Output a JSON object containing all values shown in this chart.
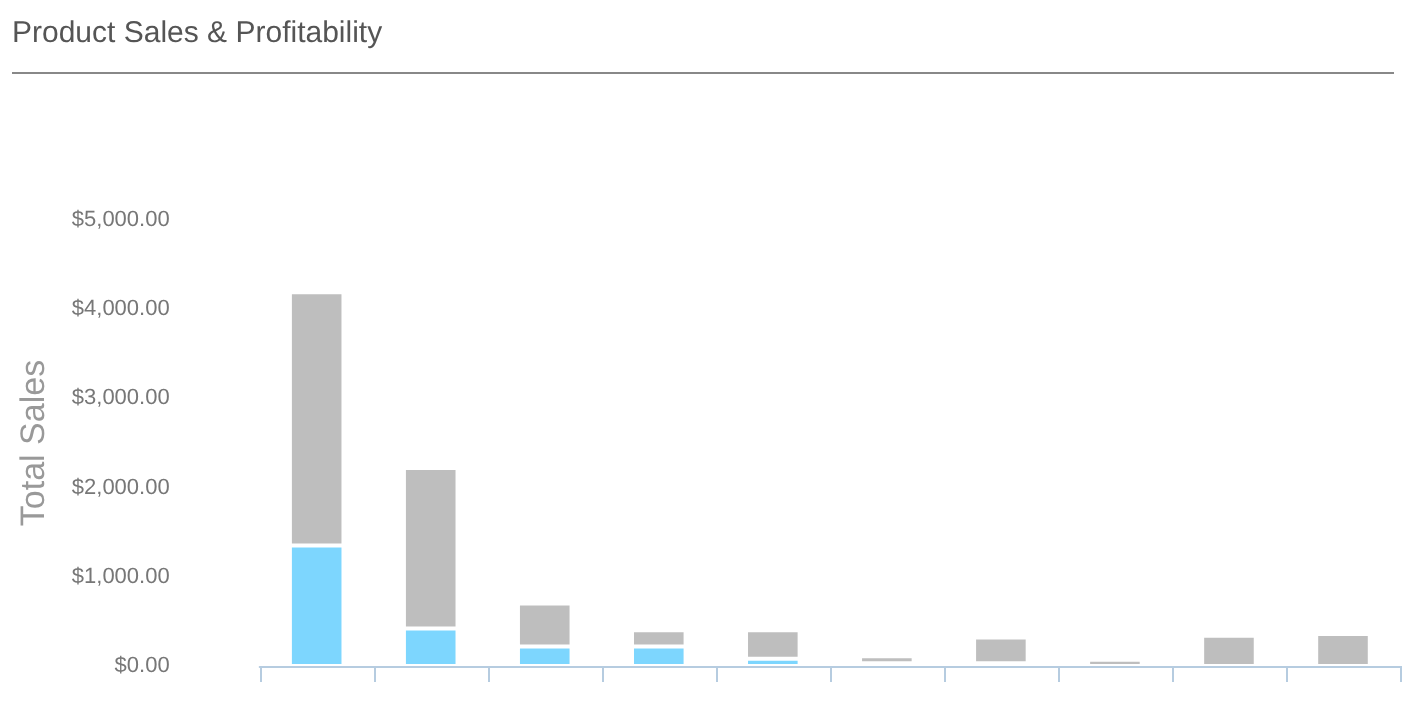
{
  "chart_data": {
    "type": "bar",
    "title": "Product Sales & Profitability",
    "ylabel": "Total Sales",
    "stacked": true,
    "categories": [
      null,
      null,
      null,
      null,
      null,
      null,
      null,
      null,
      null,
      null
    ],
    "series": [
      {
        "color": "#7dd6fe",
        "values": [
          1350,
          420,
          220,
          220,
          80,
          30,
          30,
          null,
          null,
          null
        ]
      },
      {
        "color": "#bebebe",
        "values": [
          2840,
          1800,
          480,
          180,
          320,
          80,
          290,
          70,
          340,
          360
        ]
      }
    ],
    "ylim": [
      0,
      5000
    ],
    "yticks": [
      {
        "value": 0,
        "label": "$0.00"
      },
      {
        "value": 1000,
        "label": "$1,000.00"
      },
      {
        "value": 2000,
        "label": "$2,000.00"
      },
      {
        "value": 3000,
        "label": "$3,000.00"
      },
      {
        "value": 4000,
        "label": "$4,000.00"
      },
      {
        "value": 5000,
        "label": "$5,000.00"
      }
    ],
    "grid": false
  }
}
